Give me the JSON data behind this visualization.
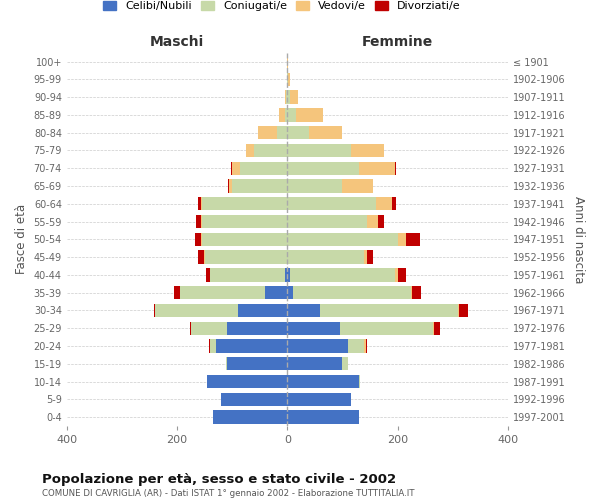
{
  "age_groups": [
    "0-4",
    "5-9",
    "10-14",
    "15-19",
    "20-24",
    "25-29",
    "30-34",
    "35-39",
    "40-44",
    "45-49",
    "50-54",
    "55-59",
    "60-64",
    "65-69",
    "70-74",
    "75-79",
    "80-84",
    "85-89",
    "90-94",
    "95-99",
    "100+"
  ],
  "birth_years": [
    "1997-2001",
    "1992-1996",
    "1987-1991",
    "1982-1986",
    "1977-1981",
    "1972-1976",
    "1967-1971",
    "1962-1966",
    "1957-1961",
    "1952-1956",
    "1947-1951",
    "1942-1946",
    "1937-1941",
    "1932-1936",
    "1927-1931",
    "1922-1926",
    "1917-1921",
    "1912-1916",
    "1907-1911",
    "1902-1906",
    "≤ 1901"
  ],
  "male_celibe": [
    135,
    120,
    145,
    110,
    130,
    110,
    90,
    40,
    5,
    0,
    0,
    0,
    0,
    0,
    0,
    0,
    0,
    0,
    0,
    0,
    0
  ],
  "male_coniugato": [
    0,
    0,
    0,
    2,
    10,
    65,
    150,
    155,
    135,
    150,
    155,
    155,
    155,
    100,
    85,
    60,
    18,
    5,
    2,
    0,
    0
  ],
  "male_vedovo": [
    0,
    0,
    0,
    0,
    0,
    0,
    0,
    0,
    0,
    2,
    2,
    2,
    2,
    5,
    15,
    15,
    35,
    10,
    2,
    0,
    0
  ],
  "male_divorziato": [
    0,
    0,
    0,
    0,
    2,
    2,
    2,
    10,
    7,
    10,
    10,
    8,
    5,
    2,
    2,
    0,
    0,
    0,
    0,
    0,
    0
  ],
  "female_celibe": [
    130,
    115,
    130,
    100,
    110,
    95,
    60,
    10,
    5,
    0,
    0,
    0,
    0,
    0,
    0,
    0,
    0,
    0,
    0,
    0,
    0
  ],
  "female_coniugata": [
    0,
    0,
    2,
    10,
    30,
    170,
    250,
    215,
    190,
    140,
    200,
    145,
    160,
    100,
    130,
    115,
    40,
    15,
    5,
    2,
    0
  ],
  "female_vedova": [
    0,
    0,
    0,
    0,
    2,
    2,
    2,
    2,
    5,
    5,
    15,
    20,
    30,
    55,
    65,
    60,
    60,
    50,
    15,
    3,
    2
  ],
  "female_divorziata": [
    0,
    0,
    0,
    0,
    2,
    10,
    15,
    15,
    15,
    10,
    25,
    10,
    8,
    0,
    2,
    0,
    0,
    0,
    0,
    0,
    0
  ],
  "colors": {
    "celibe": "#4472C4",
    "coniugato": "#C7D9A8",
    "vedovo": "#F5C57C",
    "divorziato": "#C00000"
  },
  "title": "Popolazione per età, sesso e stato civile - 2002",
  "subtitle": "COMUNE DI CAVRIGLIA (AR) - Dati ISTAT 1° gennaio 2002 - Elaborazione TUTTITALIA.IT",
  "xlabel_left": "Maschi",
  "xlabel_right": "Femmine",
  "ylabel_left": "Fasce di età",
  "ylabel_right": "Anni di nascita",
  "xlim": 400,
  "background_color": "#ffffff",
  "legend_labels": [
    "Celibi/Nubili",
    "Coniugati/e",
    "Vedovi/e",
    "Divorziati/e"
  ]
}
